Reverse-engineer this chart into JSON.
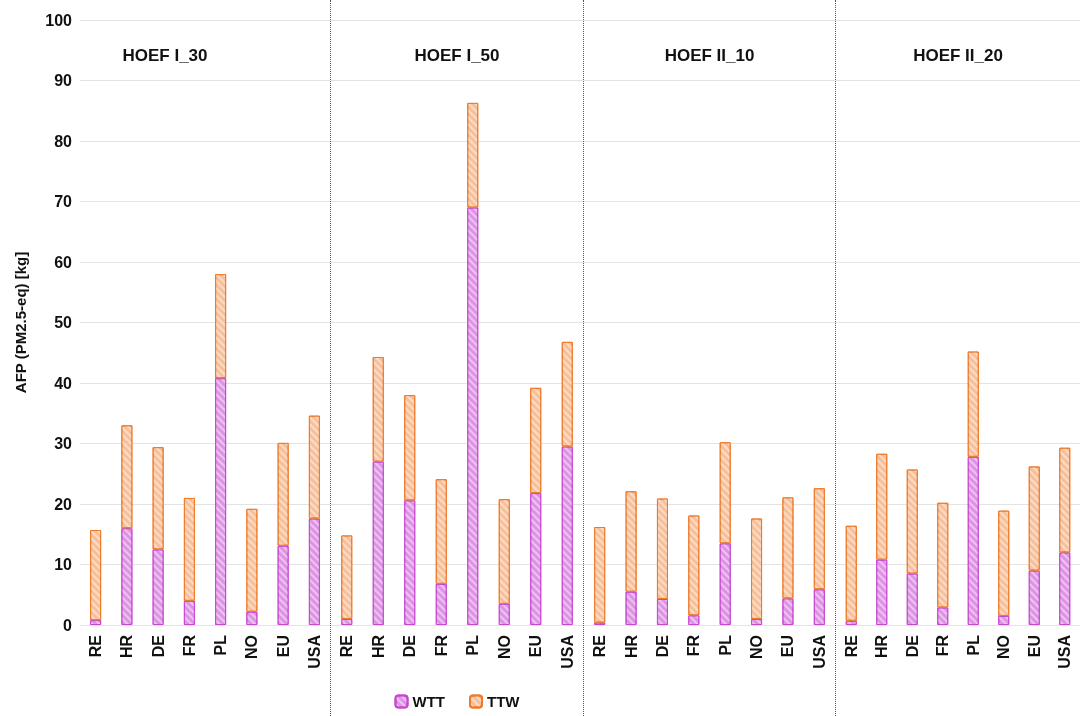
{
  "chart_data": [
    {
      "type": "bar",
      "title": "HOEF I_30",
      "ylabel": "AFP (PM2.5-eq) [kg]",
      "categories": [
        "RE",
        "HR",
        "DE",
        "FR",
        "PL",
        "NO",
        "EU",
        "USA"
      ],
      "stacked": true,
      "ylim": [
        0,
        100
      ],
      "yticks": [
        0,
        10,
        20,
        30,
        40,
        50,
        60,
        70,
        80,
        90,
        100
      ],
      "grid": "y",
      "legend": false,
      "series": [
        {
          "color": "#de94e4",
          "values": [
            0.8,
            16,
            12.5,
            4,
            40.8,
            2.2,
            13.1,
            17.6
          ]
        },
        {
          "color": "#f7c09a",
          "values": [
            14.9,
            17,
            16.9,
            17,
            17.2,
            17,
            17,
            17
          ]
        }
      ]
    },
    {
      "type": "bar",
      "title": "HOEF I_50",
      "categories": [
        "RE",
        "HR",
        "DE",
        "FR",
        "PL",
        "NO",
        "EU",
        "USA"
      ],
      "stacked": true,
      "ylim": [
        0,
        100
      ],
      "yticks": [
        0,
        10,
        20,
        30,
        40,
        50,
        60,
        70,
        80,
        90,
        100
      ],
      "grid": "y",
      "tick_labels": "x",
      "legend": "bottom",
      "series": [
        {
          "name": "WTT",
          "color": "#de94e4",
          "values": [
            1,
            27,
            20.6,
            6.8,
            69,
            3.5,
            21.8,
            29.5
          ]
        },
        {
          "name": "TTW",
          "color": "#f7c09a",
          "values": [
            13.8,
            17.3,
            17.4,
            17.3,
            17.3,
            17.3,
            17.4,
            17.3
          ]
        }
      ]
    },
    {
      "type": "bar",
      "title": "HOEF II_10",
      "categories": [
        "RE",
        "HR",
        "DE",
        "FR",
        "PL",
        "NO",
        "EU",
        "USA"
      ],
      "stacked": true,
      "ylim": [
        0,
        100
      ],
      "yticks": [
        0,
        10,
        20,
        30,
        40,
        50,
        60,
        70,
        80,
        90,
        100
      ],
      "grid": "y",
      "tick_labels": "x",
      "legend": false,
      "series": [
        {
          "color": "#de94e4",
          "values": [
            0.4,
            5.5,
            4.3,
            1.6,
            13.5,
            1,
            4.4,
            5.9
          ]
        },
        {
          "color": "#f7c09a",
          "values": [
            15.8,
            16.6,
            16.6,
            16.5,
            16.7,
            16.6,
            16.7,
            16.7
          ]
        }
      ]
    },
    {
      "type": "bar",
      "title": "HOEF II_20",
      "categories": [
        "RE",
        "HR",
        "DE",
        "FR",
        "PL",
        "NO",
        "EU",
        "USA"
      ],
      "stacked": true,
      "ylim": [
        0,
        100
      ],
      "yticks": [
        0,
        10,
        20,
        30,
        40,
        50,
        60,
        70,
        80,
        90,
        100
      ],
      "grid": "y",
      "tick_labels": "x",
      "legend": false,
      "series": [
        {
          "color": "#de94e4",
          "values": [
            0.7,
            10.8,
            8.5,
            2.9,
            27.8,
            1.5,
            9,
            12
          ]
        },
        {
          "color": "#f7c09a",
          "values": [
            15.7,
            17.5,
            17.2,
            17.3,
            17.4,
            17.4,
            17.2,
            17.3
          ]
        }
      ]
    }
  ]
}
